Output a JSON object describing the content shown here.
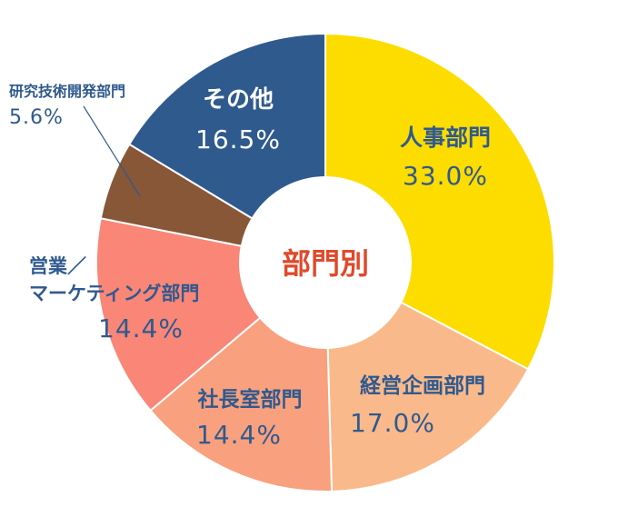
{
  "chart_data": {
    "type": "pie",
    "center_label": "部門別",
    "slices": [
      {
        "label": "人事部門",
        "label_lines": [
          "人事部門"
        ],
        "value": 33.0,
        "value_text": "33.0%",
        "color": "#fddc00"
      },
      {
        "label": "経営企画部門",
        "label_lines": [
          "経営企画部門"
        ],
        "value": 17.0,
        "value_text": "17.0%",
        "color": "#fab98b"
      },
      {
        "label": "社長室部門",
        "label_lines": [
          "社長室部門"
        ],
        "value": 14.4,
        "value_text": "14.4%",
        "color": "#f9a07e"
      },
      {
        "label": "営業／マーケティング部門",
        "label_lines": [
          "営業／",
          "マーケティング部門"
        ],
        "value": 14.4,
        "value_text": "14.4%",
        "color": "#f98677"
      },
      {
        "label": "研究技術開発部門",
        "label_lines": [
          "研究技術開発部門"
        ],
        "value": 5.6,
        "value_text": "5.6%",
        "color": "#875738"
      },
      {
        "label": "その他",
        "label_lines": [
          "その他"
        ],
        "value": 16.5,
        "value_text": "16.5%",
        "color": "#2f5a8e"
      }
    ],
    "text_colors": {
      "on_light": "#2f5a8e",
      "on_dark": "#ffffff",
      "center": "#e0492a"
    }
  }
}
